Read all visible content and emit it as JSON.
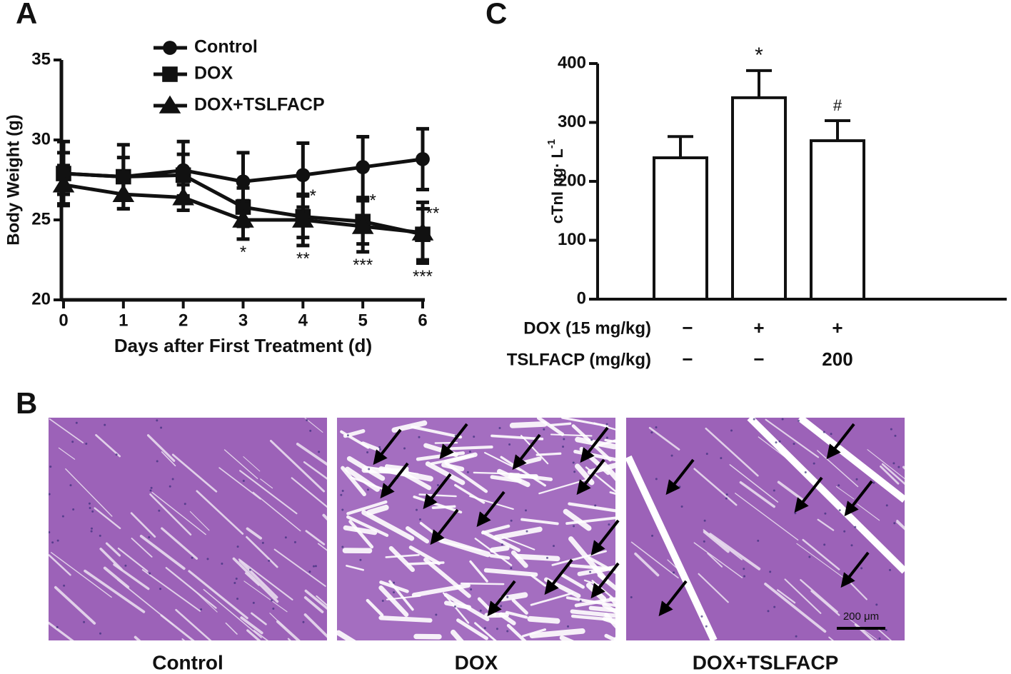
{
  "panel_labels": [
    "A",
    "C",
    "B"
  ],
  "chart_data": [
    {
      "type": "line",
      "xlabel": "Days after First Treatment (d)",
      "ylabel": "Body Weight (g)",
      "x": [
        0,
        1,
        2,
        3,
        4,
        5,
        6
      ],
      "xlim": [
        0,
        6
      ],
      "xticks": [
        0,
        1,
        2,
        3,
        4,
        5,
        6
      ],
      "ylim": [
        20,
        35
      ],
      "yticks": [
        20,
        25,
        30,
        35
      ],
      "legend": "top",
      "color": "#111111",
      "series": [
        {
          "name": "Control",
          "marker": "circle",
          "values": [
            27.9,
            27.7,
            28.1,
            27.4,
            27.8,
            28.3,
            28.8
          ],
          "errors": [
            2.0,
            2.0,
            1.8,
            1.8,
            2.0,
            1.9,
            1.9
          ],
          "annotations": [
            null,
            null,
            null,
            null,
            null,
            null,
            null
          ],
          "annotation_position": "above-right"
        },
        {
          "name": "DOX",
          "marker": "square",
          "values": [
            27.9,
            27.7,
            27.8,
            25.8,
            25.2,
            24.9,
            24.1
          ],
          "errors": [
            1.3,
            1.2,
            1.3,
            1.2,
            1.3,
            1.4,
            1.6
          ],
          "annotations": [
            null,
            null,
            null,
            null,
            "*",
            "*",
            "**"
          ],
          "annotation_position": "above-right"
        },
        {
          "name": "DOX+TSLFACP",
          "marker": "triangle",
          "values": [
            27.2,
            26.6,
            26.4,
            25.0,
            25.0,
            24.6,
            24.2
          ],
          "errors": [
            1.2,
            0.9,
            0.8,
            1.2,
            1.6,
            1.6,
            1.9
          ],
          "annotations": [
            null,
            null,
            null,
            "*",
            "**",
            "***",
            "***"
          ],
          "annotation_position": "below"
        }
      ]
    },
    {
      "type": "bar",
      "ylabel": "cTnI ng· L",
      "ylabel_sup": "-1",
      "categories": [
        null,
        null,
        null
      ],
      "values": [
        240,
        342,
        269
      ],
      "errors": [
        36,
        46,
        34
      ],
      "annotations": [
        null,
        "*",
        "#"
      ],
      "ylim": [
        0,
        400
      ],
      "yticks": [
        0,
        100,
        200,
        300,
        400
      ],
      "color": "#ffffff",
      "edgecolor": "#111111",
      "condition_rows": [
        {
          "name": "DOX (15 mg/kg)",
          "labels": [
            "−",
            "+",
            "+"
          ]
        },
        {
          "name": "TSLFACP (mg/kg)",
          "labels": [
            "−",
            "−",
            "200"
          ]
        }
      ]
    }
  ],
  "histology": {
    "labels": [
      "Control",
      "DOX",
      "DOX+TSLFACP"
    ],
    "scale_bar": "200 μm"
  }
}
